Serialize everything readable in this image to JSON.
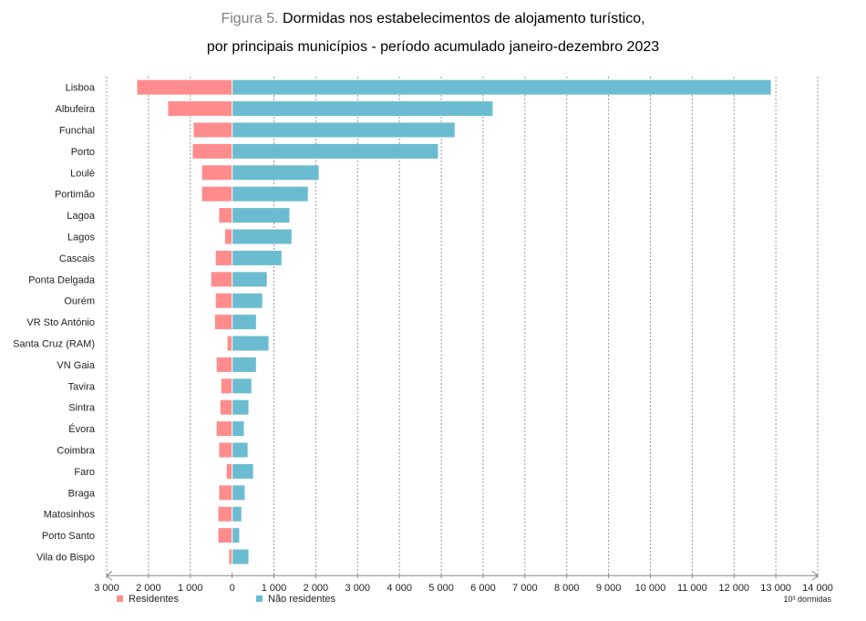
{
  "chart_data": {
    "type": "bar",
    "orientation": "horizontal",
    "title_prefix": "Figura 5.",
    "title_line1": "Dormidas nos estabelecimentos de alojamento turístico,",
    "title_line2": "por principais municípios - período acumulado janeiro-dezembro 2023",
    "unit_label": "10³ dormidas",
    "xlim": [
      -3000,
      14000
    ],
    "xticks": [
      -3000,
      -2000,
      -1000,
      0,
      1000,
      2000,
      3000,
      4000,
      5000,
      6000,
      7000,
      8000,
      9000,
      10000,
      11000,
      12000,
      13000,
      14000
    ],
    "xtick_labels": [
      "3 000",
      "2 000",
      "1 000",
      "0",
      "1 000",
      "2 000",
      "3 000",
      "4 000",
      "5 000",
      "6 000",
      "7 000",
      "8 000",
      "9 000",
      "10 000",
      "11 000",
      "12 000",
      "13 000",
      "14 000"
    ],
    "grid": "vertical dashed",
    "legend_position": "bottom-left",
    "categories": [
      "Lisboa",
      "Albufeira",
      "Funchal",
      "Porto",
      "Loulé",
      "Portimão",
      "Lagoa",
      "Lagos",
      "Cascais",
      "Ponta Delgada",
      "Ourém",
      "VR Sto António",
      "Santa Cruz (RAM)",
      "VN Gaia",
      "Tavira",
      "Sintra",
      "Évora",
      "Coimbra",
      "Faro",
      "Braga",
      "Matosinhos",
      "Porto Santo",
      "Vila do Bispo"
    ],
    "series": [
      {
        "name": "Residentes",
        "color": "#FF8C8C",
        "values": [
          -2270,
          -1530,
          -920,
          -940,
          -720,
          -720,
          -310,
          -170,
          -390,
          -500,
          -390,
          -410,
          -110,
          -370,
          -260,
          -280,
          -370,
          -310,
          -130,
          -310,
          -330,
          -330,
          -70
        ]
      },
      {
        "name": "Não residentes",
        "color": "#6BBCD1",
        "values": [
          12880,
          6230,
          5320,
          4920,
          2070,
          1810,
          1370,
          1420,
          1180,
          830,
          720,
          570,
          870,
          570,
          460,
          390,
          280,
          370,
          500,
          300,
          220,
          170,
          390
        ]
      }
    ]
  }
}
